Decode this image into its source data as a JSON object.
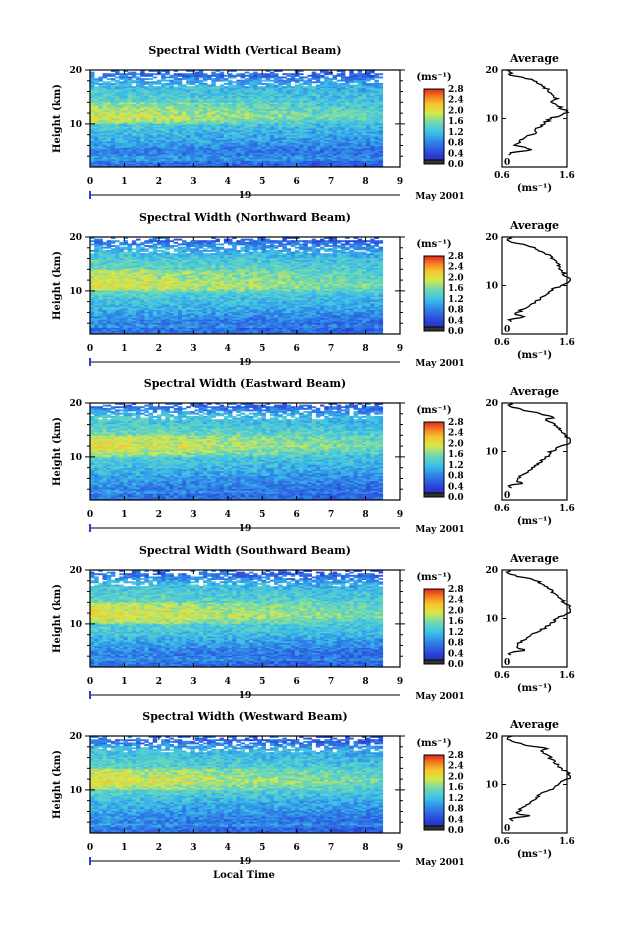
{
  "xlabel": "Local Time",
  "chart_data": [
    {
      "type": "heatmap",
      "title": "Spectral Width (Vertical Beam)",
      "ylabel": "Height (km)",
      "y_ticks": [
        "20",
        "10"
      ],
      "ylim": [
        2,
        20
      ],
      "x_ticks": [
        "0",
        "1",
        "2",
        "3",
        "4",
        "5",
        "6",
        "7",
        "8",
        "9"
      ],
      "xlim": [
        0,
        9
      ],
      "data_end_hour": 8.5,
      "day_label": "19",
      "date_label": "May 2001",
      "colorbar": {
        "unit": "(ms⁻¹)",
        "ticks": [
          "2.8",
          "2.4",
          "2.0",
          "1.6",
          "1.2",
          "0.8",
          "0.4",
          "0.0"
        ],
        "range": [
          0,
          2.8
        ]
      },
      "profile": {
        "title": "Average",
        "xlabel": "(ms⁻¹)",
        "x_ticks": [
          "0.6",
          "1.6"
        ],
        "xlim": [
          0.6,
          1.6
        ],
        "y_ticks": [
          "20",
          "10",
          "0"
        ],
        "height_km": [
          2.5,
          3,
          3.5,
          4,
          4.5,
          5,
          6,
          7,
          8,
          9,
          10,
          10.5,
          11,
          11.5,
          12,
          13,
          13.5,
          14,
          15,
          16,
          17,
          18,
          18.5,
          19,
          19.5,
          20
        ],
        "width_ms": [
          0.7,
          0.75,
          1.05,
          0.95,
          0.8,
          0.85,
          0.95,
          1.1,
          1.15,
          1.25,
          1.35,
          1.45,
          1.55,
          1.62,
          1.52,
          1.45,
          1.32,
          1.45,
          1.35,
          1.3,
          1.2,
          1.05,
          0.9,
          0.7,
          0.75,
          0.7
        ]
      }
    },
    {
      "type": "heatmap",
      "title": "Spectral Width (Northward Beam)",
      "ylabel": "Height (km)",
      "y_ticks": [
        "20",
        "10"
      ],
      "ylim": [
        2,
        20
      ],
      "x_ticks": [
        "0",
        "1",
        "2",
        "3",
        "4",
        "5",
        "6",
        "7",
        "8",
        "9"
      ],
      "xlim": [
        0,
        9
      ],
      "data_end_hour": 8.5,
      "day_label": "19",
      "date_label": "May 2001",
      "colorbar": {
        "unit": "(ms⁻¹)",
        "ticks": [
          "2.8",
          "2.4",
          "2.0",
          "1.6",
          "1.2",
          "0.8",
          "0.4",
          "0.0"
        ],
        "range": [
          0,
          2.8
        ]
      },
      "profile": {
        "title": "Average",
        "xlabel": "(ms⁻¹)",
        "x_ticks": [
          "0.6",
          "1.6"
        ],
        "xlim": [
          0.6,
          1.6
        ],
        "y_ticks": [
          "20",
          "10",
          "0"
        ],
        "height_km": [
          2.5,
          3,
          3.5,
          4,
          4.5,
          5,
          6,
          7,
          8,
          9,
          10,
          10.5,
          11,
          11.5,
          12,
          13,
          14,
          15,
          16,
          17,
          18,
          18.5,
          19,
          19.5,
          20
        ],
        "width_ms": [
          0.75,
          0.7,
          1.0,
          0.8,
          0.85,
          0.9,
          1.05,
          1.15,
          1.25,
          1.35,
          1.5,
          1.6,
          1.7,
          1.65,
          1.58,
          1.52,
          1.48,
          1.42,
          1.35,
          1.2,
          1.05,
          0.9,
          0.75,
          0.7,
          0.72
        ]
      }
    },
    {
      "type": "heatmap",
      "title": "Spectral Width (Eastward Beam)",
      "ylabel": "Height (km)",
      "y_ticks": [
        "20",
        "10"
      ],
      "ylim": [
        2,
        20
      ],
      "x_ticks": [
        "0",
        "1",
        "2",
        "3",
        "4",
        "5",
        "6",
        "7",
        "8",
        "9"
      ],
      "xlim": [
        0,
        9
      ],
      "data_end_hour": 8.5,
      "day_label": "19",
      "date_label": "May 2001",
      "colorbar": {
        "unit": "(ms⁻¹)",
        "ticks": [
          "2.8",
          "2.4",
          "2.0",
          "1.6",
          "1.2",
          "0.8",
          "0.4",
          "0.0"
        ],
        "range": [
          0,
          2.8
        ]
      },
      "profile": {
        "title": "Average",
        "xlabel": "(ms⁻¹)",
        "x_ticks": [
          "0.6",
          "1.6"
        ],
        "xlim": [
          0.6,
          1.6
        ],
        "y_ticks": [
          "20",
          "10",
          "0"
        ],
        "height_km": [
          2.5,
          3,
          3.5,
          4,
          5,
          6,
          7,
          8,
          9,
          10,
          11,
          11.5,
          12,
          13,
          14,
          15,
          16,
          16.5,
          17,
          18,
          18.5,
          19,
          19.5,
          20
        ],
        "width_ms": [
          0.75,
          0.7,
          0.95,
          0.8,
          0.9,
          1.0,
          1.1,
          1.2,
          1.3,
          1.35,
          1.5,
          1.62,
          1.7,
          1.6,
          1.55,
          1.45,
          1.35,
          1.25,
          1.4,
          1.15,
          0.95,
          0.8,
          0.7,
          0.75
        ]
      }
    },
    {
      "type": "heatmap",
      "title": "Spectral Width (Southward Beam)",
      "ylabel": "Height (km)",
      "y_ticks": [
        "20",
        "10"
      ],
      "ylim": [
        2,
        20
      ],
      "x_ticks": [
        "0",
        "1",
        "2",
        "3",
        "4",
        "5",
        "6",
        "7",
        "8",
        "9"
      ],
      "xlim": [
        0,
        9
      ],
      "data_end_hour": 8.5,
      "day_label": "19",
      "date_label": "May 2001",
      "colorbar": {
        "unit": "(ms⁻¹)",
        "ticks": [
          "2.8",
          "2.4",
          "2.0",
          "1.6",
          "1.2",
          "0.8",
          "0.4",
          "0.0"
        ],
        "range": [
          0,
          2.8
        ]
      },
      "profile": {
        "title": "Average",
        "xlabel": "(ms⁻¹)",
        "x_ticks": [
          "0.6",
          "1.6"
        ],
        "xlim": [
          0.6,
          1.6
        ],
        "y_ticks": [
          "20",
          "10",
          "0"
        ],
        "height_km": [
          2.5,
          3,
          3.5,
          4,
          5,
          6,
          7,
          8,
          9,
          10,
          11,
          11.5,
          12,
          13,
          14,
          15,
          16,
          17,
          18,
          18.5,
          19,
          19.5,
          20
        ],
        "width_ms": [
          0.75,
          0.7,
          1.0,
          0.8,
          0.85,
          1.0,
          1.1,
          1.25,
          1.35,
          1.45,
          1.6,
          1.72,
          1.68,
          1.58,
          1.5,
          1.42,
          1.35,
          1.25,
          1.1,
          0.9,
          0.75,
          0.7,
          0.72
        ]
      }
    },
    {
      "type": "heatmap",
      "title": "Spectral Width (Westward Beam)",
      "ylabel": "Height (km)",
      "y_ticks": [
        "20",
        "10"
      ],
      "ylim": [
        2,
        20
      ],
      "x_ticks": [
        "0",
        "1",
        "2",
        "3",
        "4",
        "5",
        "6",
        "7",
        "8",
        "9"
      ],
      "xlim": [
        0,
        9
      ],
      "data_end_hour": 8.5,
      "day_label": "19",
      "date_label": "May 2001",
      "colorbar": {
        "unit": "(ms⁻¹)",
        "ticks": [
          "2.8",
          "2.4",
          "2.0",
          "1.6",
          "1.2",
          "0.8",
          "0.4",
          "0.0"
        ],
        "range": [
          0,
          2.8
        ]
      },
      "profile": {
        "title": "Average",
        "xlabel": "(ms⁻¹)",
        "x_ticks": [
          "0.6",
          "1.6"
        ],
        "xlim": [
          0.6,
          1.6
        ],
        "y_ticks": [
          "20",
          "10",
          "0"
        ],
        "height_km": [
          2.5,
          3,
          3.5,
          4,
          5,
          6,
          7,
          8,
          9,
          10,
          11,
          11.5,
          12,
          13,
          14,
          15,
          16,
          17,
          17.5,
          18,
          18.5,
          19,
          19.5,
          20
        ],
        "width_ms": [
          0.75,
          0.7,
          1.05,
          0.8,
          0.9,
          1.0,
          1.1,
          1.2,
          1.35,
          1.45,
          1.55,
          1.72,
          1.65,
          1.55,
          1.45,
          1.38,
          1.3,
          1.2,
          1.3,
          1.0,
          0.85,
          0.72,
          0.7,
          0.75
        ]
      }
    }
  ]
}
